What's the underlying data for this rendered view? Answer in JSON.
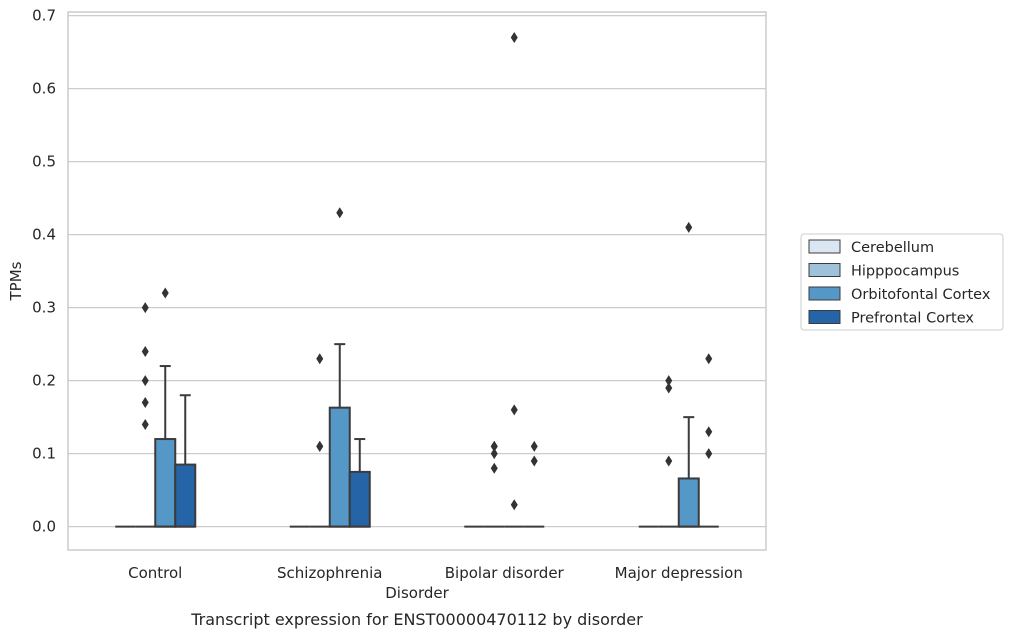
{
  "chart_data": {
    "type": "box",
    "caption": "Transcript expression for ENST00000470112 by disorder",
    "xlabel": "Disorder",
    "ylabel": "TPMs",
    "ylim": [
      -0.032,
      0.705
    ],
    "yticks": [
      "0.0",
      "0.1",
      "0.2",
      "0.3",
      "0.4",
      "0.5",
      "0.6",
      "0.7"
    ],
    "ytick_values": [
      0,
      0.1,
      0.2,
      0.3,
      0.4,
      0.5,
      0.6,
      0.7
    ],
    "grid": "horizontal",
    "legend_position": "right",
    "categories": [
      "Control",
      "Schizophrenia",
      "Bipolar disorder",
      "Major depression"
    ],
    "series": [
      {
        "name": "Cerebellum",
        "color": "#dae7f3",
        "boxes": [
          {
            "q1": 0,
            "median": 0,
            "q3": 0,
            "whisker_low": 0,
            "whisker_high": 0,
            "outliers": []
          },
          {
            "q1": 0,
            "median": 0,
            "q3": 0,
            "whisker_low": 0,
            "whisker_high": 0,
            "outliers": []
          },
          {
            "q1": 0,
            "median": 0,
            "q3": 0,
            "whisker_low": 0,
            "whisker_high": 0,
            "outliers": []
          },
          {
            "q1": 0,
            "median": 0,
            "q3": 0,
            "whisker_low": 0,
            "whisker_high": 0,
            "outliers": []
          }
        ]
      },
      {
        "name": "Hipppocampus",
        "color": "#9dc2da",
        "boxes": [
          {
            "q1": 0,
            "median": 0,
            "q3": 0,
            "whisker_low": 0,
            "whisker_high": 0,
            "outliers": [
              0.3,
              0.24,
              0.2,
              0.17,
              0.14
            ]
          },
          {
            "q1": 0,
            "median": 0,
            "q3": 0,
            "whisker_low": 0,
            "whisker_high": 0,
            "outliers": [
              0.23,
              0.11,
              0.11
            ]
          },
          {
            "q1": 0,
            "median": 0,
            "q3": 0,
            "whisker_low": 0,
            "whisker_high": 0,
            "outliers": [
              0.11,
              0.1,
              0.08,
              0.11
            ]
          },
          {
            "q1": 0,
            "median": 0,
            "q3": 0,
            "whisker_low": 0,
            "whisker_high": 0,
            "outliers": [
              0.2,
              0.19,
              0.09
            ]
          }
        ]
      },
      {
        "name": "Orbitofontal Cortex",
        "color": "#5597c6",
        "boxes": [
          {
            "q1": 0,
            "median": 0,
            "q3": 0.12,
            "whisker_low": 0,
            "whisker_high": 0.22,
            "outliers": [
              0.32
            ]
          },
          {
            "q1": 0,
            "median": 0,
            "q3": 0.163,
            "whisker_low": 0,
            "whisker_high": 0.25,
            "outliers": [
              0.43
            ]
          },
          {
            "q1": 0,
            "median": 0,
            "q3": 0,
            "whisker_low": 0,
            "whisker_high": 0,
            "outliers": [
              0.67,
              0.16,
              0.03
            ]
          },
          {
            "q1": 0,
            "median": 0,
            "q3": 0.066,
            "whisker_low": 0,
            "whisker_high": 0.15,
            "outliers": [
              0.41
            ]
          }
        ]
      },
      {
        "name": "Prefrontal Cortex",
        "color": "#2565a7",
        "boxes": [
          {
            "q1": 0,
            "median": 0,
            "q3": 0.085,
            "whisker_low": 0,
            "whisker_high": 0.18,
            "outliers": []
          },
          {
            "q1": 0,
            "median": 0,
            "q3": 0.075,
            "whisker_low": 0,
            "whisker_high": 0.12,
            "outliers": []
          },
          {
            "q1": 0,
            "median": 0,
            "q3": 0,
            "whisker_low": 0,
            "whisker_high": 0,
            "outliers": [
              0.11,
              0.09
            ]
          },
          {
            "q1": 0,
            "median": 0,
            "q3": 0,
            "whisker_low": 0,
            "whisker_high": 0,
            "outliers": [
              0.23,
              0.13,
              0.1
            ]
          }
        ]
      }
    ]
  }
}
